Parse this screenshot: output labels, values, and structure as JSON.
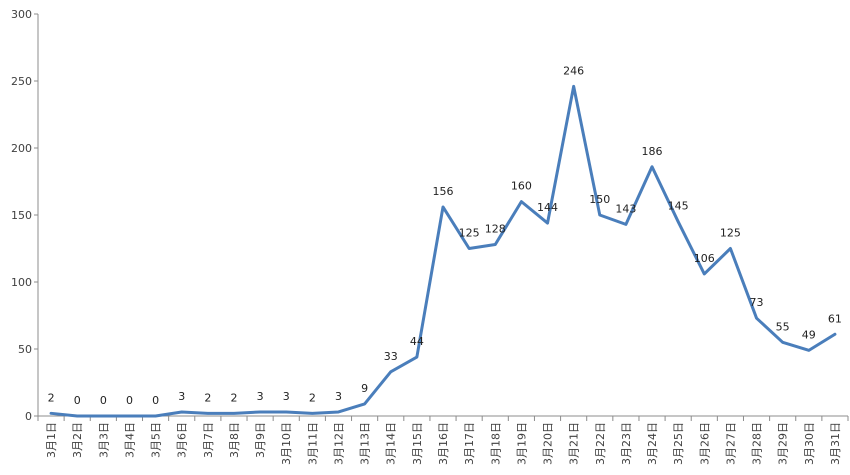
{
  "chart_data": {
    "type": "line",
    "title": "",
    "xlabel": "",
    "ylabel": "",
    "ylim": [
      0,
      300
    ],
    "yticks": [
      0,
      50,
      100,
      150,
      200,
      250,
      300
    ],
    "grid": false,
    "legend": "none",
    "categories": [
      "3月1日",
      "3月2日",
      "3月3日",
      "3月4日",
      "3月5日",
      "3月6日",
      "3月7日",
      "3月8日",
      "3月9日",
      "3月10日",
      "3月11日",
      "3月12日",
      "3月13日",
      "3月14日",
      "3月15日",
      "3月16日",
      "3月17日",
      "3月18日",
      "3月19日",
      "3月20日",
      "3月21日",
      "3月22日",
      "3月23日",
      "3月24日",
      "3月25日",
      "3月26日",
      "3月27日",
      "3月28日",
      "3月29日",
      "3月30日",
      "3月31日"
    ],
    "series": [
      {
        "color": "#4a7ebb",
        "values": [
          2,
          0,
          0,
          0,
          0,
          3,
          2,
          2,
          3,
          3,
          2,
          3,
          9,
          33,
          44,
          156,
          125,
          128,
          160,
          144,
          246,
          150,
          143,
          186,
          145,
          106,
          125,
          73,
          55,
          49,
          61
        ]
      }
    ]
  }
}
